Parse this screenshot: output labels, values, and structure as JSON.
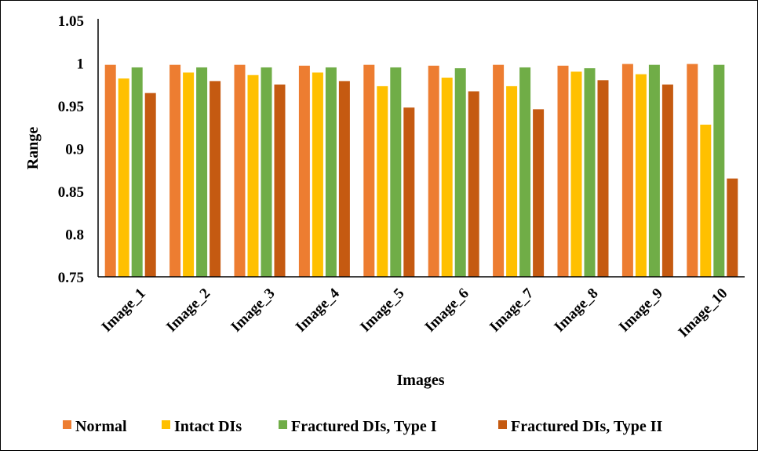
{
  "chart_data": {
    "type": "bar",
    "title": "",
    "xlabel": "Images",
    "ylabel": "Range",
    "ylim": [
      0.75,
      1.05
    ],
    "yticks": [
      "0.75",
      "0.8",
      "0.85",
      "0.9",
      "0.95",
      "1",
      "1.05"
    ],
    "grid": false,
    "legend_position": "bottom",
    "categories": [
      "Image_1",
      "Image_2",
      "Image_3",
      "Image_4",
      "Image_5",
      "Image_6",
      "Image_7",
      "Image_8",
      "Image_9",
      "Image_10"
    ],
    "series": [
      {
        "name": "Normal",
        "color": "#ED7D31",
        "values": [
          0.998,
          0.998,
          0.998,
          0.997,
          0.998,
          0.997,
          0.998,
          0.997,
          0.999,
          0.999
        ]
      },
      {
        "name": "Intact DIs",
        "color": "#FFC000",
        "values": [
          0.982,
          0.989,
          0.986,
          0.989,
          0.973,
          0.983,
          0.973,
          0.99,
          0.987,
          0.928
        ]
      },
      {
        "name": "Fractured DIs, Type I",
        "color": "#70AD47",
        "values": [
          0.995,
          0.995,
          0.995,
          0.995,
          0.995,
          0.994,
          0.995,
          0.994,
          0.998,
          0.998
        ]
      },
      {
        "name": "Fractured DIs, Type II",
        "color": "#C55A11",
        "values": [
          0.965,
          0.979,
          0.975,
          0.979,
          0.948,
          0.967,
          0.946,
          0.98,
          0.975,
          0.865
        ]
      }
    ]
  }
}
